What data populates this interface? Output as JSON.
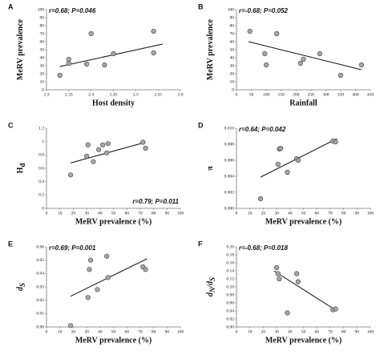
{
  "chart_data": [
    {
      "type": "scatter",
      "panel": "A",
      "xlabel": "Host density",
      "ylabel": [
        "MeRV prevalence"
      ],
      "annotation": "r=0.68; P=0.046",
      "annotation_corner": "upper left",
      "x": [
        2.33,
        2.35,
        2.35,
        2.39,
        2.4,
        2.43,
        2.45,
        2.54,
        2.54
      ],
      "values": [
        18,
        33,
        38,
        32,
        70,
        31,
        45,
        46,
        73
      ],
      "trendline": {
        "x": [
          2.33,
          2.56
        ],
        "y": [
          29,
          57
        ]
      },
      "color": "#a6a6a6",
      "xlim": [
        2.3,
        2.6
      ],
      "xticks": [
        2.3,
        2.35,
        2.4,
        2.45,
        2.5,
        2.55,
        2.6
      ],
      "ylim": [
        0,
        100
      ],
      "yticks": [
        0,
        10,
        20,
        30,
        40,
        50,
        60,
        70,
        80,
        90,
        100
      ]
    },
    {
      "type": "scatter",
      "panel": "B",
      "xlabel": "Rainfall",
      "ylabel": [
        "MeRV prevalence"
      ],
      "annotation": "r=-0.68; P=0.052",
      "annotation_corner": "upper left",
      "x": [
        45,
        95,
        100,
        135,
        215,
        225,
        280,
        350,
        420
      ],
      "values": [
        73,
        45,
        31,
        70,
        33,
        38,
        45,
        18,
        31
      ],
      "trendline": {
        "x": [
          40,
          420
        ],
        "y": [
          60,
          25
        ]
      },
      "color": "#a6a6a6",
      "xlim": [
        0,
        450
      ],
      "xticks": [
        0,
        50,
        100,
        150,
        200,
        250,
        300,
        350,
        400,
        450
      ],
      "ylim": [
        0,
        100
      ],
      "yticks": [
        0,
        10,
        20,
        30,
        40,
        50,
        60,
        70,
        80,
        90,
        100
      ]
    },
    {
      "type": "scatter",
      "panel": "C",
      "xlabel": "MeRV prevalence (%)",
      "ylabel": [
        "H",
        "d"
      ],
      "annotation": "r=0.79; P=0.011",
      "annotation_corner": "lower right",
      "x": [
        18,
        30,
        31,
        35,
        39,
        42,
        45,
        46,
        72,
        74
      ],
      "values": [
        0.5,
        0.78,
        0.95,
        0.7,
        0.88,
        0.95,
        0.83,
        0.97,
        0.99,
        0.9
      ],
      "trendline": {
        "x": [
          18,
          74
        ],
        "y": [
          0.68,
          0.99
        ]
      },
      "color": "#a6a6a6",
      "xlim": [
        0,
        100
      ],
      "xticks": [
        0,
        10,
        20,
        30,
        40,
        50,
        60,
        70,
        80,
        90,
        100
      ],
      "ylim": [
        0,
        1.2
      ],
      "yticks": [
        0,
        0.2,
        0.4,
        0.6,
        0.8,
        1,
        1.2
      ]
    },
    {
      "type": "scatter",
      "panel": "D",
      "xlabel": "MeRV prevalence (%)",
      "ylabel": [
        "π"
      ],
      "annotation": "r=0.64; P=0.042",
      "annotation_corner": "upper left",
      "x": [
        18,
        31,
        32,
        33,
        38,
        45,
        46,
        72,
        74
      ],
      "values": [
        0.0012,
        0.0055,
        0.0074,
        0.0075,
        0.0045,
        0.0062,
        0.006,
        0.0084,
        0.0083
      ],
      "trendline": {
        "x": [
          18,
          75
        ],
        "y": [
          0.0039,
          0.0087
        ]
      },
      "color": "#a6a6a6",
      "xlim": [
        0,
        100
      ],
      "xticks": [
        0,
        10,
        20,
        30,
        40,
        50,
        60,
        70,
        80,
        90,
        100
      ],
      "ylim": [
        0,
        0.01
      ],
      "yticks": [
        {
          "value": 0,
          "label": "0.000"
        },
        {
          "value": 0.002,
          "label": "0.002"
        },
        {
          "value": 0.004,
          "label": "0.004"
        },
        {
          "value": 0.006,
          "label": "0.006"
        },
        {
          "value": 0.008,
          "label": "0.008"
        },
        {
          "value": 0.01,
          "label": "0.010"
        }
      ]
    },
    {
      "type": "scatter",
      "panel": "E",
      "xlabel": "MeRV prevalence (%)",
      "ylabel": [
        "d",
        "S"
      ],
      "annotation": "r=0.69; P=0.001",
      "annotation_corner": "upper left",
      "x": [
        18,
        31,
        32,
        33,
        38,
        45,
        46,
        72,
        74
      ],
      "values": [
        0.001,
        0.022,
        0.043,
        0.05,
        0.028,
        0.053,
        0.037,
        0.045,
        0.043
      ],
      "trendline": {
        "x": [
          18,
          75
        ],
        "y": [
          0.023,
          0.051
        ]
      },
      "color": "#a6a6a6",
      "xlim": [
        0,
        100
      ],
      "xticks": [
        0,
        10,
        20,
        30,
        40,
        50,
        60,
        70,
        80,
        90,
        100
      ],
      "ylim": [
        0,
        0.06
      ],
      "yticks": [
        {
          "value": 0,
          "label": "0.00"
        },
        {
          "value": 0.01,
          "label": "0.01"
        },
        {
          "value": 0.02,
          "label": "0.02"
        },
        {
          "value": 0.03,
          "label": "0.03"
        },
        {
          "value": 0.04,
          "label": "0.04"
        },
        {
          "value": 0.05,
          "label": "0.05"
        },
        {
          "value": 0.06,
          "label": "0.06"
        }
      ]
    },
    {
      "type": "scatter",
      "panel": "F",
      "xlabel": "MeRV prevalence (%)",
      "ylabel": [
        "d",
        "N",
        "/d",
        "S"
      ],
      "annotation": "r=-0.68; P=0.018",
      "annotation_corner": "upper left",
      "x": [
        30,
        31,
        32,
        38,
        45,
        46,
        72,
        74
      ],
      "values": [
        0.148,
        0.133,
        0.12,
        0.035,
        0.133,
        0.113,
        0.043,
        0.045
      ],
      "trendline": {
        "x": [
          28,
          75
        ],
        "y": [
          0.14,
          0.04
        ]
      },
      "color": "#a6a6a6",
      "xlim": [
        0,
        100
      ],
      "xticks": [
        0,
        10,
        20,
        30,
        40,
        50,
        60,
        70,
        80,
        90,
        100
      ],
      "ylim": [
        0,
        0.2
      ],
      "yticks": [
        {
          "value": 0,
          "label": "0.00"
        },
        {
          "value": 0.02,
          "label": "0.02"
        },
        {
          "value": 0.04,
          "label": "0.04"
        },
        {
          "value": 0.06,
          "label": "0.06"
        },
        {
          "value": 0.08,
          "label": "0.08"
        },
        {
          "value": 0.1,
          "label": "0.10"
        },
        {
          "value": 0.12,
          "label": "0.12"
        },
        {
          "value": 0.14,
          "label": "0.14"
        },
        {
          "value": 0.16,
          "label": "0.16"
        },
        {
          "value": 0.18,
          "label": "0.18"
        },
        {
          "value": 0.2,
          "label": "0.20"
        }
      ]
    }
  ]
}
